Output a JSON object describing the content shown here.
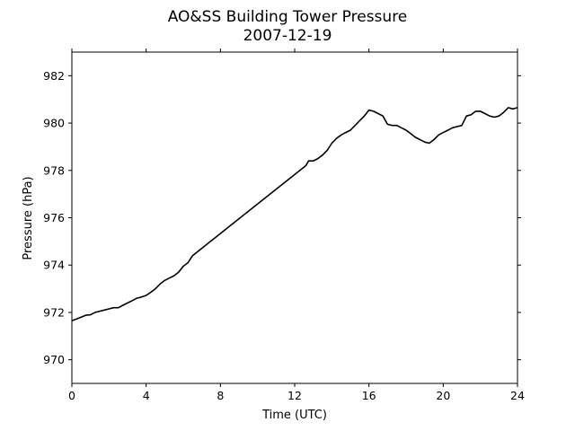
{
  "chart_data": {
    "type": "line",
    "title": "AO&SS Building Tower Pressure",
    "subtitle": "2007-12-19",
    "xlabel": "Time (UTC)",
    "ylabel": "Pressure (hPa)",
    "xlim": [
      0,
      24
    ],
    "ylim": [
      969,
      983
    ],
    "xticks": [
      0,
      4,
      8,
      12,
      16,
      20,
      24
    ],
    "yticks": [
      970,
      972,
      974,
      976,
      978,
      980,
      982
    ],
    "grid": false,
    "legend": "none",
    "series": [
      {
        "color": "#000000",
        "x": [
          0,
          0.25,
          0.5,
          0.75,
          1,
          1.25,
          1.5,
          1.75,
          2,
          2.25,
          2.5,
          2.75,
          3,
          3.25,
          3.5,
          3.75,
          4,
          4.25,
          4.5,
          4.75,
          5,
          5.25,
          5.5,
          5.75,
          6,
          6.25,
          6.5,
          12.6,
          12.75,
          13,
          13.25,
          13.5,
          13.75,
          14,
          14.25,
          14.5,
          14.75,
          15,
          15.25,
          15.5,
          15.75,
          16,
          16.25,
          16.5,
          16.75,
          17,
          17.25,
          17.5,
          17.75,
          18,
          18.25,
          18.5,
          18.75,
          19,
          19.25,
          19.5,
          19.75,
          20,
          20.25,
          20.5,
          20.75,
          21,
          21.25,
          21.5,
          21.75,
          22,
          22.25,
          22.5,
          22.75,
          23,
          23.25,
          23.5,
          23.75,
          24
        ],
        "y": [
          971.65,
          971.72,
          971.8,
          971.88,
          971.9,
          972.0,
          972.05,
          972.1,
          972.15,
          972.2,
          972.2,
          972.3,
          972.4,
          972.5,
          972.6,
          972.65,
          972.72,
          972.85,
          973.0,
          973.2,
          973.35,
          973.45,
          973.55,
          973.7,
          973.95,
          974.1,
          974.4,
          978.2,
          978.4,
          978.4,
          978.5,
          978.65,
          978.85,
          979.15,
          979.35,
          979.5,
          979.6,
          979.7,
          979.9,
          980.1,
          980.3,
          980.55,
          980.5,
          980.4,
          980.3,
          979.95,
          979.9,
          979.9,
          979.8,
          979.7,
          979.55,
          979.4,
          979.3,
          979.2,
          979.15,
          979.3,
          979.5,
          979.6,
          979.7,
          979.8,
          979.85,
          979.9,
          980.3,
          980.35,
          980.5,
          980.5,
          980.4,
          980.3,
          980.25,
          980.3,
          980.45,
          980.65,
          980.6,
          980.65
        ]
      }
    ]
  }
}
